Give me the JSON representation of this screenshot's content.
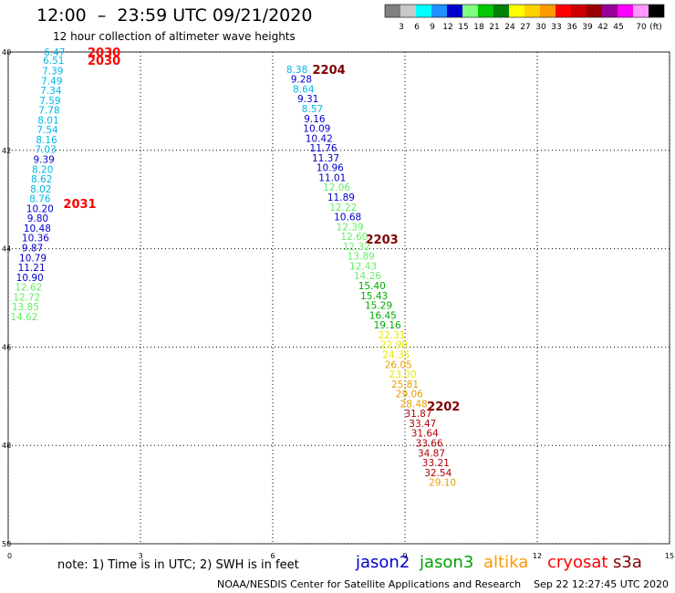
{
  "header": {
    "title": "12:00  –  23:59 UTC 09/21/2020",
    "subtitle": "12 hour collection of altimeter wave heights"
  },
  "legend": {
    "unit": "(ft)",
    "bins": [
      {
        "label": "",
        "color": "#808080"
      },
      {
        "label": "3",
        "color": "#c8c8c8"
      },
      {
        "label": "6",
        "color": "#00ffff"
      },
      {
        "label": "9",
        "color": "#1e90ff"
      },
      {
        "label": "12",
        "color": "#0000cc"
      },
      {
        "label": "15",
        "color": "#80ff80"
      },
      {
        "label": "18",
        "color": "#00c800"
      },
      {
        "label": "21",
        "color": "#008000"
      },
      {
        "label": "24",
        "color": "#ffff00"
      },
      {
        "label": "27",
        "color": "#ffd000"
      },
      {
        "label": "30",
        "color": "#ff9900"
      },
      {
        "label": "33",
        "color": "#ff0000"
      },
      {
        "label": "36",
        "color": "#cc0000"
      },
      {
        "label": "39",
        "color": "#990000"
      },
      {
        "label": "42",
        "color": "#990099"
      },
      {
        "label": "45",
        "color": "#ff00ff"
      },
      {
        "label": "70",
        "color": "#ff99ff"
      },
      {
        "label": "",
        "color": "#000000"
      }
    ]
  },
  "chart_data": {
    "type": "scatter",
    "x_ticks": [
      "0",
      "3",
      "6",
      "9",
      "12",
      "15"
    ],
    "y_ticks": [
      "40",
      "42",
      "44",
      "46",
      "48",
      "50"
    ],
    "xlim": [
      0,
      15
    ],
    "ylim": [
      50,
      40
    ],
    "grid": true,
    "point_colors": {
      "cyan": "#00b8e6",
      "blue": "#0000cc",
      "lightgreen": "#66ee66",
      "green": "#00aa00",
      "yellow": "#e8e800",
      "orange": "#e6a000",
      "red": "#b00000",
      "darkred": "#800000",
      "label_red": "#ff0000"
    },
    "time_labels": [
      {
        "text": "2030",
        "x": 1.8,
        "y": 40.0,
        "color": "label_red"
      },
      {
        "text": "2030",
        "x": 1.8,
        "y": 40.17,
        "color": "label_red"
      },
      {
        "text": "2031",
        "x": 1.25,
        "y": 43.08,
        "color": "label_red"
      },
      {
        "text": "2204",
        "x": 6.9,
        "y": 40.35,
        "color": "darkred"
      },
      {
        "text": "2203",
        "x": 8.1,
        "y": 43.8,
        "color": "darkred"
      },
      {
        "text": "2202",
        "x": 9.5,
        "y": 47.2,
        "color": "darkred"
      }
    ],
    "series": [
      {
        "name": "jason2",
        "points": [
          {
            "v": "6.47",
            "x": 1.05,
            "y": 40.0,
            "color": "cyan"
          },
          {
            "v": "6.51",
            "x": 1.03,
            "y": 40.17,
            "color": "cyan"
          },
          {
            "v": "7.39",
            "x": 1.01,
            "y": 40.38,
            "color": "cyan"
          },
          {
            "v": "7.49",
            "x": 0.99,
            "y": 40.58,
            "color": "cyan"
          },
          {
            "v": "7.34",
            "x": 0.97,
            "y": 40.78,
            "color": "cyan"
          },
          {
            "v": "7.59",
            "x": 0.95,
            "y": 40.98,
            "color": "cyan"
          },
          {
            "v": "7.78",
            "x": 0.93,
            "y": 41.18,
            "color": "cyan"
          },
          {
            "v": "8.01",
            "x": 0.91,
            "y": 41.38,
            "color": "cyan"
          },
          {
            "v": "7.54",
            "x": 0.89,
            "y": 41.58,
            "color": "cyan"
          },
          {
            "v": "8.16",
            "x": 0.87,
            "y": 41.78,
            "color": "cyan"
          },
          {
            "v": "7.03",
            "x": 0.85,
            "y": 41.98,
            "color": "cyan"
          },
          {
            "v": "9.39",
            "x": 0.81,
            "y": 42.18,
            "color": "blue"
          },
          {
            "v": "8.20",
            "x": 0.78,
            "y": 42.38,
            "color": "cyan"
          },
          {
            "v": "8.62",
            "x": 0.76,
            "y": 42.58,
            "color": "cyan"
          },
          {
            "v": "8.02",
            "x": 0.74,
            "y": 42.78,
            "color": "cyan"
          },
          {
            "v": "8.76",
            "x": 0.72,
            "y": 42.98,
            "color": "cyan"
          },
          {
            "v": "10.20",
            "x": 0.72,
            "y": 43.18,
            "color": "blue"
          },
          {
            "v": "9.80",
            "x": 0.67,
            "y": 43.38,
            "color": "blue"
          },
          {
            "v": "10.48",
            "x": 0.66,
            "y": 43.58,
            "color": "blue"
          },
          {
            "v": "10.36",
            "x": 0.62,
            "y": 43.78,
            "color": "blue"
          },
          {
            "v": "9.87",
            "x": 0.55,
            "y": 43.98,
            "color": "blue"
          },
          {
            "v": "10.79",
            "x": 0.56,
            "y": 44.18,
            "color": "blue"
          },
          {
            "v": "11.21",
            "x": 0.53,
            "y": 44.38,
            "color": "blue"
          },
          {
            "v": "10.90",
            "x": 0.49,
            "y": 44.58,
            "color": "blue"
          },
          {
            "v": "12.62",
            "x": 0.46,
            "y": 44.78,
            "color": "lightgreen"
          },
          {
            "v": "12.72",
            "x": 0.42,
            "y": 44.98,
            "color": "lightgreen"
          },
          {
            "v": "13.85",
            "x": 0.39,
            "y": 45.18,
            "color": "lightgreen"
          },
          {
            "v": "14.62",
            "x": 0.36,
            "y": 45.38,
            "color": "lightgreen"
          }
        ]
      },
      {
        "name": "jason3",
        "points": [
          {
            "v": "8.38",
            "x": 6.55,
            "y": 40.35,
            "color": "cyan"
          },
          {
            "v": "9.28",
            "x": 6.65,
            "y": 40.55,
            "color": "blue"
          },
          {
            "v": "8.64",
            "x": 6.7,
            "y": 40.75,
            "color": "cyan"
          },
          {
            "v": "9.31",
            "x": 6.8,
            "y": 40.95,
            "color": "blue"
          },
          {
            "v": "8.57",
            "x": 6.9,
            "y": 41.15,
            "color": "cyan"
          },
          {
            "v": "9.16",
            "x": 6.95,
            "y": 41.35,
            "color": "blue"
          },
          {
            "v": "10.09",
            "x": 7.0,
            "y": 41.55,
            "color": "blue"
          },
          {
            "v": "10.42",
            "x": 7.05,
            "y": 41.75,
            "color": "blue"
          },
          {
            "v": "11.76",
            "x": 7.15,
            "y": 41.95,
            "color": "blue"
          },
          {
            "v": "11.37",
            "x": 7.2,
            "y": 42.15,
            "color": "blue"
          },
          {
            "v": "10.96",
            "x": 7.3,
            "y": 42.35,
            "color": "blue"
          },
          {
            "v": "11.01",
            "x": 7.35,
            "y": 42.55,
            "color": "blue"
          },
          {
            "v": "12.06",
            "x": 7.45,
            "y": 42.75,
            "color": "lightgreen"
          },
          {
            "v": "11.89",
            "x": 7.55,
            "y": 42.95,
            "color": "blue"
          },
          {
            "v": "12.22",
            "x": 7.6,
            "y": 43.15,
            "color": "lightgreen"
          },
          {
            "v": "10.68",
            "x": 7.7,
            "y": 43.35,
            "color": "blue"
          },
          {
            "v": "12.39",
            "x": 7.75,
            "y": 43.55,
            "color": "lightgreen"
          },
          {
            "v": "12.60",
            "x": 7.85,
            "y": 43.75,
            "color": "lightgreen"
          },
          {
            "v": "12.32",
            "x": 7.9,
            "y": 43.95,
            "color": "lightgreen"
          },
          {
            "v": "13.89",
            "x": 8.0,
            "y": 44.15,
            "color": "lightgreen"
          },
          {
            "v": "12.43",
            "x": 8.05,
            "y": 44.35,
            "color": "lightgreen"
          },
          {
            "v": "14.26",
            "x": 8.15,
            "y": 44.55,
            "color": "lightgreen"
          },
          {
            "v": "15.40",
            "x": 8.25,
            "y": 44.75,
            "color": "green"
          },
          {
            "v": "15.43",
            "x": 8.3,
            "y": 44.95,
            "color": "green"
          },
          {
            "v": "15.29",
            "x": 8.4,
            "y": 45.15,
            "color": "green"
          },
          {
            "v": "16.45",
            "x": 8.5,
            "y": 45.35,
            "color": "green"
          },
          {
            "v": "19.16",
            "x": 8.6,
            "y": 45.55,
            "color": "green"
          },
          {
            "v": "22.31",
            "x": 8.7,
            "y": 45.75,
            "color": "yellow"
          },
          {
            "v": "22.90",
            "x": 8.75,
            "y": 45.95,
            "color": "yellow"
          },
          {
            "v": "24.35",
            "x": 8.8,
            "y": 46.15,
            "color": "yellow"
          },
          {
            "v": "26.05",
            "x": 8.85,
            "y": 46.35,
            "color": "orange"
          },
          {
            "v": "23.00",
            "x": 8.95,
            "y": 46.55,
            "color": "yellow"
          },
          {
            "v": "25.81",
            "x": 9.0,
            "y": 46.75,
            "color": "orange"
          },
          {
            "v": "29.06",
            "x": 9.1,
            "y": 46.95,
            "color": "orange"
          },
          {
            "v": "28.48",
            "x": 9.2,
            "y": 47.15,
            "color": "orange"
          },
          {
            "v": "31.87",
            "x": 9.3,
            "y": 47.35,
            "color": "red"
          },
          {
            "v": "33.47",
            "x": 9.4,
            "y": 47.55,
            "color": "red"
          },
          {
            "v": "31.64",
            "x": 9.45,
            "y": 47.75,
            "color": "red"
          },
          {
            "v": "33.66",
            "x": 9.55,
            "y": 47.95,
            "color": "red"
          },
          {
            "v": "34.87",
            "x": 9.6,
            "y": 48.15,
            "color": "red"
          },
          {
            "v": "33.21",
            "x": 9.7,
            "y": 48.35,
            "color": "red"
          },
          {
            "v": "32.54",
            "x": 9.75,
            "y": 48.55,
            "color": "red"
          },
          {
            "v": "29.10",
            "x": 9.85,
            "y": 48.75,
            "color": "orange"
          }
        ]
      }
    ]
  },
  "note": "note: 1) Time is in UTC; 2) SWH is in feet",
  "satellites": [
    {
      "name": "jason2",
      "color": "#0000cc"
    },
    {
      "name": "jason3",
      "color": "#00a000"
    },
    {
      "name": "altika",
      "color": "#ff9900"
    },
    {
      "name": "cryosat",
      "color": "#ff0000"
    },
    {
      "name": "s3a",
      "color": "#800000"
    }
  ],
  "footer": "NOAA/NESDIS Center for Satellite Applications and Research    Sep 22 12:27:45 UTC 2020"
}
